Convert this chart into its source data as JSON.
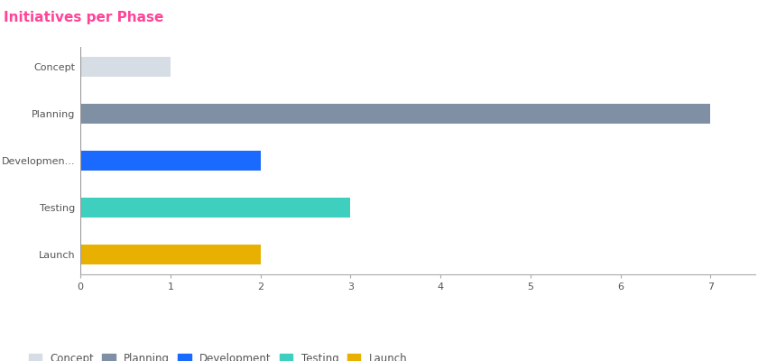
{
  "title": "Initiatives per Phase",
  "title_color": "#ff4499",
  "title_fontsize": 11,
  "categories": [
    "Concept",
    "Planning",
    "Developmen...",
    "Testing",
    "Launch"
  ],
  "values": [
    1,
    7,
    2,
    3,
    2
  ],
  "bar_colors": [
    "#d6dde5",
    "#7f8fa4",
    "#1a6aff",
    "#3ecfbf",
    "#e8b000"
  ],
  "xlim": [
    0,
    7.5
  ],
  "xticks": [
    0,
    1,
    2,
    3,
    4,
    5,
    6,
    7
  ],
  "legend_labels": [
    "Concept",
    "Planning",
    "Development",
    "Testing",
    "Launch"
  ],
  "legend_colors": [
    "#d6dde5",
    "#7f8fa4",
    "#1a6aff",
    "#3ecfbf",
    "#e8b000"
  ],
  "background_color": "#ffffff",
  "bar_height": 0.42,
  "tick_fontsize": 8,
  "legend_fontsize": 8.5
}
